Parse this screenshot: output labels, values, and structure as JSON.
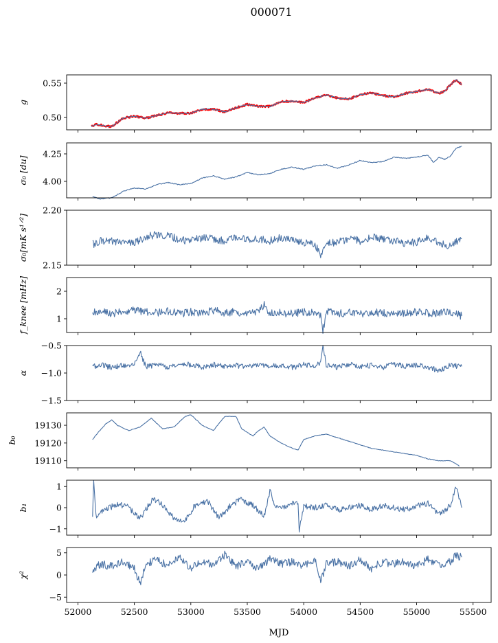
{
  "title": "000071",
  "chart_data": [
    {
      "type": "line",
      "ylabel": "g",
      "ylim": [
        0.482,
        0.562
      ],
      "yticks": [
        0.5,
        0.55
      ],
      "ytick_labels": [
        "0.50",
        "0.55"
      ],
      "series": [
        {
          "color": "#ff0000",
          "x": [
            52120,
            52160,
            52200,
            52260,
            52300,
            52400,
            52500,
            52600,
            52700,
            52800,
            52900,
            53000,
            53100,
            53200,
            53300,
            53400,
            53500,
            53600,
            53700,
            53800,
            53900,
            54000,
            54100,
            54200,
            54300,
            54400,
            54500,
            54600,
            54700,
            54800,
            54900,
            55000,
            55080,
            55100,
            55200,
            55250,
            55300,
            55350,
            55400
          ],
          "y": [
            0.487,
            0.49,
            0.489,
            0.487,
            0.487,
            0.499,
            0.502,
            0.499,
            0.503,
            0.507,
            0.506,
            0.506,
            0.512,
            0.512,
            0.508,
            0.514,
            0.519,
            0.516,
            0.516,
            0.523,
            0.524,
            0.522,
            0.528,
            0.533,
            0.528,
            0.527,
            0.533,
            0.536,
            0.532,
            0.53,
            0.535,
            0.538,
            0.54,
            0.541,
            0.535,
            0.538,
            0.548,
            0.555,
            0.548
          ]
        },
        {
          "color": "#4a72a5",
          "x": [
            52120,
            52160,
            52200,
            52260,
            52300,
            52400,
            52500,
            52600,
            52700,
            52800,
            52900,
            53000,
            53100,
            53200,
            53300,
            53400,
            53500,
            53600,
            53700,
            53800,
            53900,
            54000,
            54100,
            54200,
            54300,
            54400,
            54500,
            54600,
            54700,
            54800,
            54900,
            55000,
            55080,
            55100,
            55200,
            55250,
            55300,
            55350,
            55400
          ],
          "y": [
            0.487,
            0.49,
            0.489,
            0.487,
            0.487,
            0.499,
            0.502,
            0.499,
            0.503,
            0.507,
            0.506,
            0.506,
            0.512,
            0.512,
            0.508,
            0.514,
            0.519,
            0.516,
            0.516,
            0.523,
            0.524,
            0.522,
            0.528,
            0.533,
            0.528,
            0.527,
            0.533,
            0.536,
            0.532,
            0.53,
            0.535,
            0.538,
            0.54,
            0.541,
            0.535,
            0.538,
            0.548,
            0.555,
            0.548
          ]
        }
      ]
    },
    {
      "type": "line",
      "ylabel": "σ₀ [du]",
      "ylim": [
        3.85,
        4.35
      ],
      "yticks": [
        4.0,
        4.25
      ],
      "ytick_labels": [
        "4.00",
        "4.25"
      ],
      "series": [
        {
          "color": "#4a72a5",
          "x": [
            52130,
            52200,
            52300,
            52400,
            52500,
            52600,
            52700,
            52800,
            52900,
            53000,
            53100,
            53200,
            53300,
            53400,
            53500,
            53600,
            53700,
            53800,
            53900,
            54000,
            54100,
            54200,
            54300,
            54400,
            54500,
            54600,
            54700,
            54800,
            54900,
            55000,
            55100,
            55150,
            55200,
            55250,
            55300,
            55350,
            55400
          ],
          "y": [
            3.86,
            3.84,
            3.85,
            3.91,
            3.94,
            3.93,
            3.97,
            3.99,
            3.97,
            3.98,
            4.03,
            4.05,
            4.02,
            4.04,
            4.08,
            4.06,
            4.07,
            4.11,
            4.13,
            4.11,
            4.14,
            4.15,
            4.12,
            4.15,
            4.19,
            4.17,
            4.18,
            4.22,
            4.21,
            4.22,
            4.24,
            4.17,
            4.22,
            4.2,
            4.23,
            4.3,
            4.32
          ]
        }
      ]
    },
    {
      "type": "line",
      "ylabel": "σ₀[mK s¹ᐟ²]",
      "ylim": [
        2.15,
        2.2
      ],
      "yticks": [
        2.15,
        2.2
      ],
      "ytick_labels": [
        "2.15",
        "2.20"
      ],
      "series": [
        {
          "color": "#4a72a5",
          "x": [
            52130,
            52200,
            52300,
            52400,
            52500,
            52600,
            52700,
            52800,
            52900,
            53000,
            53100,
            53200,
            53300,
            53400,
            53500,
            53600,
            53700,
            53800,
            53900,
            54000,
            54100,
            54150,
            54200,
            54300,
            54400,
            54500,
            54600,
            54700,
            54800,
            54900,
            55000,
            55100,
            55200,
            55300,
            55400
          ],
          "y": [
            2.169,
            2.172,
            2.172,
            2.171,
            2.17,
            2.176,
            2.178,
            2.177,
            2.173,
            2.172,
            2.175,
            2.174,
            2.172,
            2.176,
            2.173,
            2.174,
            2.172,
            2.175,
            2.173,
            2.171,
            2.168,
            2.16,
            2.17,
            2.171,
            2.174,
            2.172,
            2.176,
            2.173,
            2.172,
            2.17,
            2.171,
            2.176,
            2.17,
            2.168,
            2.174
          ]
        }
      ]
    },
    {
      "type": "line",
      "ylabel": "f_knee [mHz]",
      "ylim": [
        0.5,
        2.5
      ],
      "yticks": [
        1,
        2
      ],
      "ytick_labels": [
        "1",
        "2"
      ],
      "series": [
        {
          "color": "#4a72a5",
          "x": [
            52130,
            52200,
            52300,
            52400,
            52500,
            52600,
            52700,
            52800,
            52900,
            53000,
            53100,
            53200,
            53300,
            53400,
            53500,
            53600,
            53650,
            53700,
            53800,
            53900,
            54000,
            54100,
            54150,
            54170,
            54200,
            54300,
            54400,
            54500,
            54600,
            54700,
            54800,
            54900,
            55000,
            55100,
            55200,
            55300,
            55400
          ],
          "y": [
            1.25,
            1.3,
            1.2,
            1.25,
            1.3,
            1.25,
            1.22,
            1.28,
            1.18,
            1.25,
            1.2,
            1.3,
            1.22,
            1.25,
            1.2,
            1.28,
            1.5,
            1.2,
            1.22,
            1.18,
            1.25,
            1.2,
            1.15,
            0.55,
            1.25,
            1.2,
            1.22,
            1.18,
            1.25,
            1.2,
            1.22,
            1.18,
            1.25,
            1.2,
            1.22,
            1.25,
            1.1
          ]
        }
      ]
    },
    {
      "type": "line",
      "ylabel": "α",
      "ylim": [
        -1.5,
        -0.5
      ],
      "yticks": [
        -1.5,
        -1.0,
        -0.5
      ],
      "ytick_labels": [
        "−1.5",
        "−1.0",
        "−0.5"
      ],
      "series": [
        {
          "color": "#4a72a5",
          "x": [
            52130,
            52200,
            52300,
            52400,
            52500,
            52550,
            52600,
            52700,
            52800,
            52900,
            53000,
            53100,
            53200,
            53300,
            53400,
            53500,
            53600,
            53700,
            53800,
            53900,
            54000,
            54100,
            54150,
            54170,
            54200,
            54300,
            54400,
            54500,
            54600,
            54700,
            54800,
            54900,
            55000,
            55100,
            55200,
            55300,
            55400
          ],
          "y": [
            -0.88,
            -0.85,
            -0.9,
            -0.86,
            -0.84,
            -0.62,
            -0.88,
            -0.85,
            -0.9,
            -0.86,
            -0.84,
            -0.89,
            -0.85,
            -0.88,
            -0.86,
            -0.9,
            -0.84,
            -0.88,
            -0.86,
            -0.9,
            -0.84,
            -0.88,
            -0.8,
            -0.52,
            -0.86,
            -0.9,
            -0.84,
            -0.88,
            -0.86,
            -0.9,
            -0.84,
            -0.88,
            -0.86,
            -0.9,
            -0.95,
            -0.86,
            -0.88
          ]
        }
      ]
    },
    {
      "type": "line",
      "ylabel": "b₀",
      "ylim": [
        19106,
        19137
      ],
      "yticks": [
        19110,
        19120,
        19130
      ],
      "ytick_labels": [
        "19110",
        "19120",
        "19130"
      ],
      "series": [
        {
          "color": "#4a72a5",
          "x": [
            52130,
            52180,
            52250,
            52300,
            52350,
            52450,
            52550,
            52650,
            52750,
            52850,
            52950,
            53000,
            53100,
            53200,
            53250,
            53300,
            53350,
            53400,
            53450,
            53550,
            53600,
            53650,
            53700,
            53800,
            53900,
            53950,
            54000,
            54100,
            54200,
            54400,
            54600,
            54800,
            55000,
            55100,
            55200,
            55300,
            55380
          ],
          "y": [
            19122,
            19126,
            19131,
            19133,
            19130,
            19127,
            19129,
            19134,
            19128,
            19129,
            19135,
            19136,
            19130,
            19127,
            19131,
            19135,
            19135,
            19135,
            19128,
            19124,
            19127,
            19129,
            19124,
            19120,
            19117,
            19116,
            19122,
            19124,
            19125,
            19121,
            19117,
            19115,
            19113,
            19111,
            19110,
            19110,
            19107
          ]
        }
      ]
    },
    {
      "type": "line",
      "ylabel": "b₁",
      "ylim": [
        -1.3,
        1.3
      ],
      "yticks": [
        -1,
        0,
        1
      ],
      "ytick_labels": [
        "−1",
        "0",
        "1"
      ],
      "series": [
        {
          "color": "#4a72a5",
          "x": [
            52130,
            52140,
            52160,
            52250,
            52350,
            52450,
            52550,
            52650,
            52700,
            52750,
            52850,
            52950,
            53050,
            53150,
            53250,
            53350,
            53450,
            53550,
            53650,
            53700,
            53750,
            53850,
            53950,
            53960,
            54000,
            54100,
            54200,
            54300,
            54400,
            54500,
            54600,
            54700,
            54800,
            54900,
            55000,
            55100,
            55200,
            55300,
            55350,
            55400
          ],
          "y": [
            -0.3,
            1.2,
            -0.4,
            -0.1,
            0.2,
            0.0,
            -0.5,
            0.3,
            0.4,
            0.1,
            -0.5,
            -0.6,
            0.2,
            0.3,
            -0.5,
            0.1,
            0.4,
            0.1,
            -0.4,
            0.8,
            0.0,
            0.1,
            0.3,
            -1.1,
            0.1,
            0.0,
            0.1,
            -0.1,
            0.0,
            0.1,
            -0.1,
            0.1,
            0.0,
            -0.1,
            0.1,
            0.2,
            -0.3,
            0.1,
            1.0,
            0.0
          ]
        }
      ]
    },
    {
      "type": "line",
      "ylabel": "χ²",
      "ylim": [
        -6.2,
        6.2
      ],
      "yticks": [
        -5,
        0,
        5
      ],
      "ytick_labels": [
        "−5",
        "0",
        "5"
      ],
      "series": [
        {
          "color": "#4a72a5",
          "x": [
            52130,
            52200,
            52300,
            52400,
            52500,
            52550,
            52600,
            52700,
            52800,
            52900,
            53000,
            53100,
            53200,
            53300,
            53400,
            53500,
            53600,
            53700,
            53800,
            53900,
            54000,
            54100,
            54150,
            54200,
            54300,
            54400,
            54500,
            54600,
            54700,
            54800,
            54900,
            55000,
            55100,
            55200,
            55300,
            55350,
            55400
          ],
          "y": [
            1.0,
            2.5,
            2.0,
            3.0,
            1.5,
            -2.0,
            2.5,
            3.5,
            2.0,
            4.0,
            1.5,
            3.0,
            2.5,
            4.5,
            2.0,
            3.0,
            1.5,
            3.5,
            2.5,
            3.0,
            2.0,
            3.5,
            -1.5,
            2.5,
            3.0,
            2.0,
            3.5,
            1.5,
            3.0,
            2.5,
            3.0,
            2.0,
            3.5,
            2.0,
            3.0,
            4.5,
            4.0
          ]
        }
      ]
    }
  ],
  "x_axis": {
    "label": "MJD",
    "xlim": [
      51900,
      55660
    ],
    "ticks": [
      52000,
      52500,
      53000,
      53500,
      54000,
      54500,
      55000,
      55500
    ],
    "tick_labels": [
      "52000",
      "52500",
      "53000",
      "53500",
      "54000",
      "54500",
      "55000",
      "55500"
    ]
  }
}
